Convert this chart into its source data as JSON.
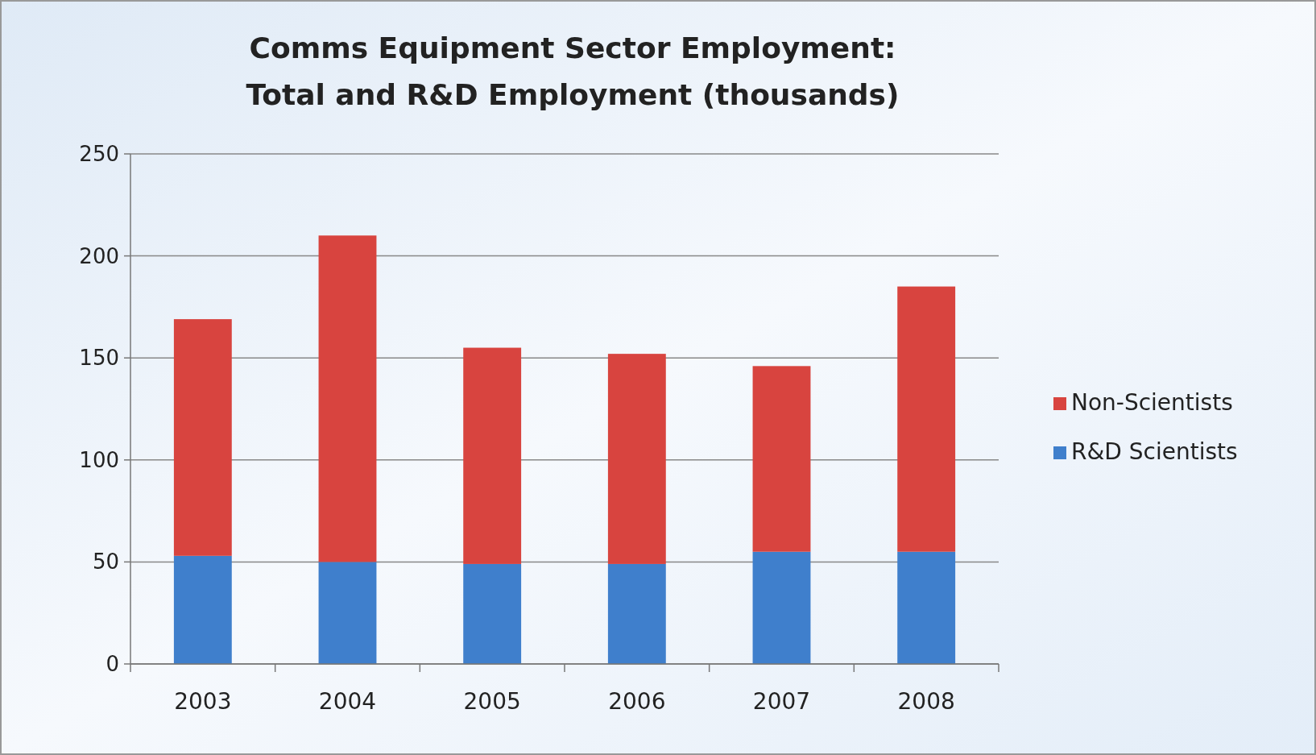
{
  "chart_data": {
    "type": "bar",
    "title": "Comms Equipment Sector Employment:\nTotal and R&D Employment (thousands)",
    "categories": [
      "2003",
      "2004",
      "2005",
      "2006",
      "2007",
      "2008"
    ],
    "stacked": true,
    "series": [
      {
        "name": "R&D Scientists",
        "color": "#3f7fcc",
        "values": [
          53,
          50,
          49,
          49,
          55,
          55
        ]
      },
      {
        "name": "Non-Scientists",
        "color": "#d8443f",
        "values": [
          116,
          160,
          106,
          103,
          91,
          130
        ]
      }
    ],
    "ylim": [
      0,
      250
    ],
    "yticks": [
      0,
      50,
      100,
      150,
      200,
      250
    ],
    "grid": "y",
    "legend": "right"
  }
}
